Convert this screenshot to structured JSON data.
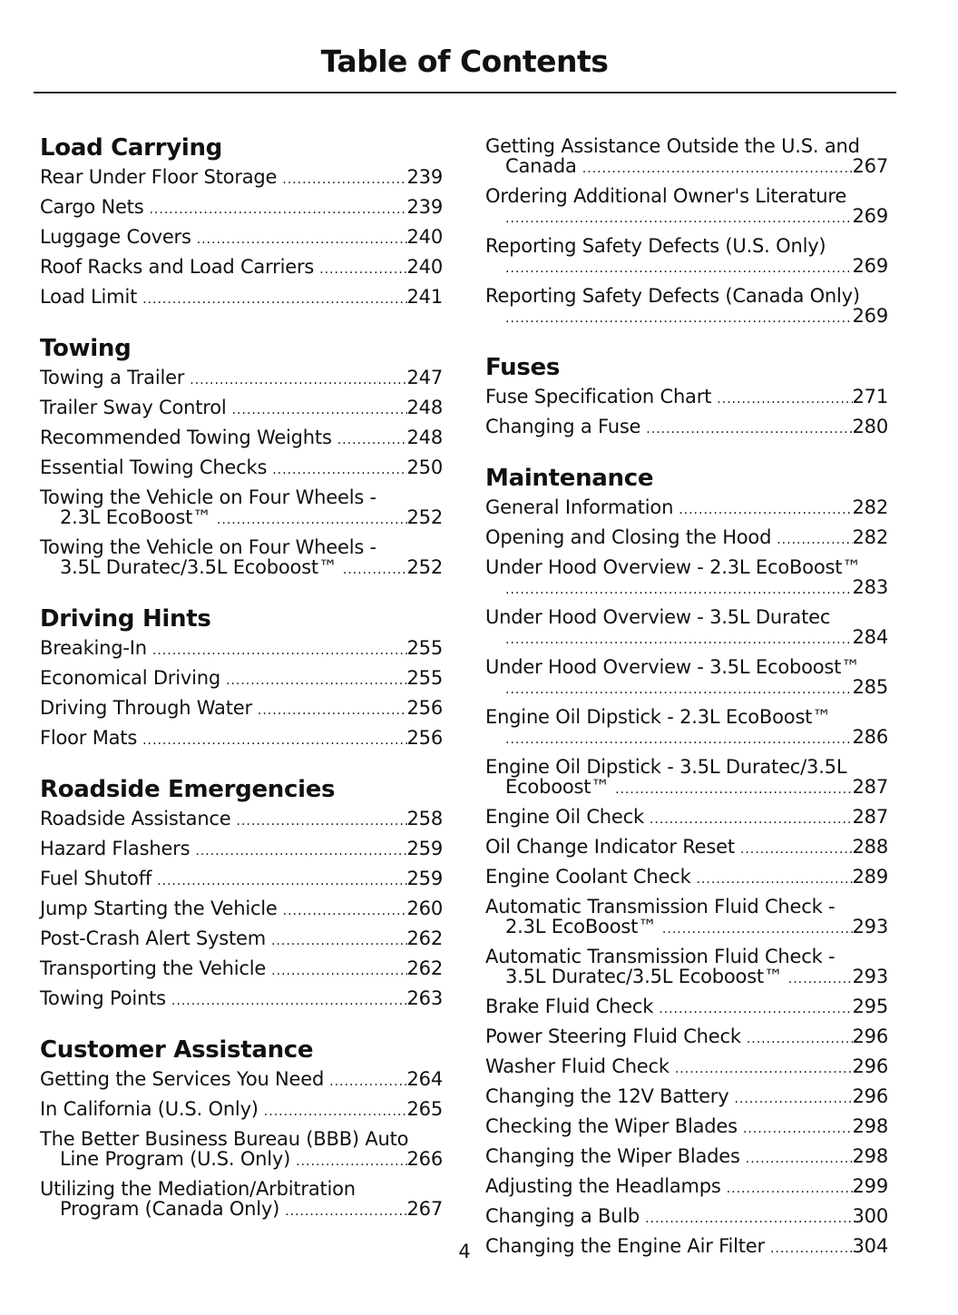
{
  "title": "Table of Contents",
  "page_number": "4",
  "columns": [
    {
      "sections": [
        {
          "heading": "Load Carrying",
          "entries": [
            {
              "lines": [
                "Rear Under Floor Storage"
              ],
              "page": "239"
            },
            {
              "lines": [
                "Cargo Nets"
              ],
              "page": "239"
            },
            {
              "lines": [
                "Luggage Covers"
              ],
              "page": "240"
            },
            {
              "lines": [
                "Roof Racks and Load Carriers"
              ],
              "page": "240"
            },
            {
              "lines": [
                "Load Limit"
              ],
              "page": "241"
            }
          ]
        },
        {
          "heading": "Towing",
          "entries": [
            {
              "lines": [
                "Towing a Trailer"
              ],
              "page": "247"
            },
            {
              "lines": [
                "Trailer Sway Control"
              ],
              "page": "248"
            },
            {
              "lines": [
                "Recommended Towing Weights"
              ],
              "page": "248"
            },
            {
              "lines": [
                "Essential Towing Checks"
              ],
              "page": "250"
            },
            {
              "lines": [
                "Towing the Vehicle on Four Wheels -",
                "2.3L EcoBoost™"
              ],
              "page": "252"
            },
            {
              "lines": [
                "Towing the Vehicle on Four Wheels -",
                "3.5L Duratec/3.5L Ecoboost™"
              ],
              "page": "252"
            }
          ]
        },
        {
          "heading": "Driving Hints",
          "entries": [
            {
              "lines": [
                "Breaking-In"
              ],
              "page": "255"
            },
            {
              "lines": [
                "Economical Driving"
              ],
              "page": "255"
            },
            {
              "lines": [
                "Driving Through Water"
              ],
              "page": "256"
            },
            {
              "lines": [
                "Floor Mats"
              ],
              "page": "256"
            }
          ]
        },
        {
          "heading": "Roadside Emergencies",
          "entries": [
            {
              "lines": [
                "Roadside Assistance"
              ],
              "page": "258"
            },
            {
              "lines": [
                "Hazard Flashers"
              ],
              "page": "259"
            },
            {
              "lines": [
                "Fuel Shutoff"
              ],
              "page": "259"
            },
            {
              "lines": [
                "Jump Starting the Vehicle"
              ],
              "page": "260"
            },
            {
              "lines": [
                "Post-Crash Alert System"
              ],
              "page": "262"
            },
            {
              "lines": [
                "Transporting the Vehicle"
              ],
              "page": "262"
            },
            {
              "lines": [
                "Towing Points"
              ],
              "page": "263"
            }
          ]
        },
        {
          "heading": "Customer Assistance",
          "entries": [
            {
              "lines": [
                "Getting the Services You Need"
              ],
              "page": "264"
            },
            {
              "lines": [
                "In California (U.S. Only)"
              ],
              "page": "265"
            },
            {
              "lines": [
                "The Better Business Bureau (BBB) Auto",
                "Line Program (U.S. Only)"
              ],
              "page": "266"
            },
            {
              "lines": [
                "Utilizing the Mediation/Arbitration",
                "Program (Canada Only)"
              ],
              "page": "267"
            }
          ]
        }
      ]
    },
    {
      "sections": [
        {
          "heading": "",
          "entries": [
            {
              "lines": [
                "Getting Assistance Outside the U.S. and",
                "Canada"
              ],
              "page": "267"
            },
            {
              "lines": [
                "Ordering Additional Owner's Literature",
                ""
              ],
              "page": "269"
            },
            {
              "lines": [
                "Reporting Safety Defects (U.S. Only)",
                ""
              ],
              "page": "269"
            },
            {
              "lines": [
                "Reporting Safety Defects (Canada Only)",
                ""
              ],
              "page": "269"
            }
          ]
        },
        {
          "heading": "Fuses",
          "entries": [
            {
              "lines": [
                "Fuse Specification Chart"
              ],
              "page": "271"
            },
            {
              "lines": [
                "Changing a Fuse"
              ],
              "page": "280"
            }
          ]
        },
        {
          "heading": "Maintenance",
          "entries": [
            {
              "lines": [
                "General Information"
              ],
              "page": "282"
            },
            {
              "lines": [
                "Opening and Closing the Hood"
              ],
              "page": "282"
            },
            {
              "lines": [
                "Under Hood Overview - 2.3L EcoBoost™",
                ""
              ],
              "page": "283"
            },
            {
              "lines": [
                "Under Hood Overview - 3.5L Duratec",
                ""
              ],
              "page": "284"
            },
            {
              "lines": [
                "Under Hood Overview - 3.5L Ecoboost™",
                ""
              ],
              "page": "285"
            },
            {
              "lines": [
                "Engine Oil Dipstick - 2.3L EcoBoost™",
                ""
              ],
              "page": "286"
            },
            {
              "lines": [
                "Engine Oil Dipstick - 3.5L Duratec/3.5L",
                "Ecoboost™"
              ],
              "page": "287"
            },
            {
              "lines": [
                "Engine Oil Check"
              ],
              "page": "287"
            },
            {
              "lines": [
                "Oil Change Indicator Reset"
              ],
              "page": "288"
            },
            {
              "lines": [
                "Engine Coolant Check"
              ],
              "page": "289"
            },
            {
              "lines": [
                "Automatic Transmission Fluid Check -",
                "2.3L EcoBoost™"
              ],
              "page": "293"
            },
            {
              "lines": [
                "Automatic Transmission Fluid Check -",
                "3.5L Duratec/3.5L Ecoboost™"
              ],
              "page": "293"
            },
            {
              "lines": [
                "Brake Fluid Check"
              ],
              "page": "295"
            },
            {
              "lines": [
                "Power Steering Fluid Check"
              ],
              "page": "296"
            },
            {
              "lines": [
                "Washer Fluid Check"
              ],
              "page": "296"
            },
            {
              "lines": [
                "Changing the 12V Battery"
              ],
              "page": "296"
            },
            {
              "lines": [
                "Checking the Wiper Blades"
              ],
              "page": "298"
            },
            {
              "lines": [
                "Changing the Wiper Blades"
              ],
              "page": "298"
            },
            {
              "lines": [
                "Adjusting the Headlamps"
              ],
              "page": "299"
            },
            {
              "lines": [
                "Changing a Bulb"
              ],
              "page": "300"
            },
            {
              "lines": [
                "Changing the Engine Air Filter"
              ],
              "page": "304"
            }
          ]
        }
      ]
    }
  ]
}
